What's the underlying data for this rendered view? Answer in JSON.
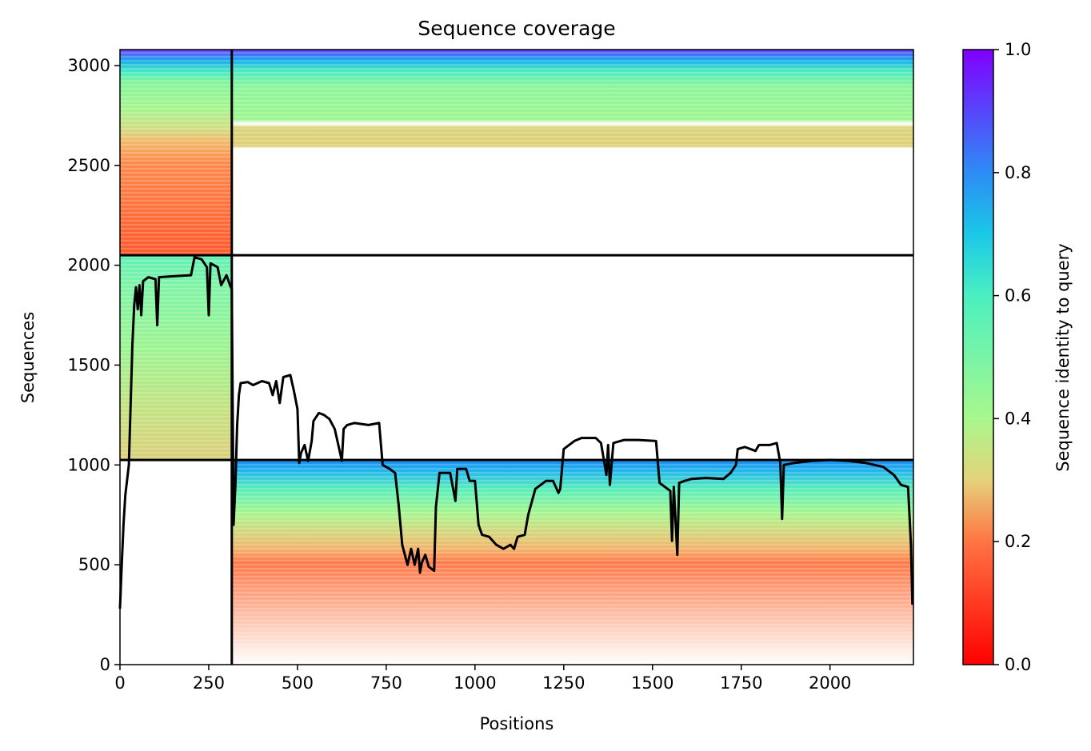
{
  "chart_data": {
    "type": "heatmap",
    "title": "Sequence coverage",
    "xlabel": "Positions",
    "ylabel": "Sequences",
    "xlim": [
      0,
      2235
    ],
    "ylim": [
      0,
      3080
    ],
    "xticks": [
      0,
      250,
      500,
      750,
      1000,
      1250,
      1500,
      1750,
      2000
    ],
    "yticks": [
      0,
      500,
      1000,
      1500,
      2000,
      2500,
      3000
    ],
    "colormap": "rainbow (red 0.0 to violet 1.0)",
    "colorbar": {
      "label": "Sequence identity to query",
      "range": [
        0.0,
        1.0
      ],
      "ticks": [
        0.0,
        0.2,
        0.4,
        0.6,
        0.8,
        1.0
      ],
      "tick_labels": [
        "0.0",
        "0.2",
        "0.4",
        "0.6",
        "0.8",
        "1.0"
      ]
    },
    "chain_boundaries": {
      "x": 315,
      "y": [
        1025,
        2050
      ]
    },
    "blocks": [
      {
        "name": "chain1-top",
        "x": [
          0,
          315
        ],
        "y": [
          2050,
          3080
        ]
      },
      {
        "name": "chain1-mid",
        "x": [
          0,
          315
        ],
        "y": [
          1025,
          2050
        ]
      },
      {
        "name": "chain2-top",
        "x": [
          315,
          2235
        ],
        "y": [
          2050,
          3080
        ]
      },
      {
        "name": "chain2-bottom",
        "x": [
          315,
          2235
        ],
        "y": [
          0,
          1025
        ]
      }
    ],
    "coverage_line": [
      [
        0,
        280
      ],
      [
        5,
        500
      ],
      [
        10,
        700
      ],
      [
        15,
        850
      ],
      [
        25,
        1000
      ],
      [
        30,
        1300
      ],
      [
        35,
        1600
      ],
      [
        40,
        1800
      ],
      [
        45,
        1890
      ],
      [
        50,
        1780
      ],
      [
        55,
        1900
      ],
      [
        60,
        1750
      ],
      [
        65,
        1920
      ],
      [
        80,
        1940
      ],
      [
        100,
        1930
      ],
      [
        105,
        1700
      ],
      [
        110,
        1940
      ],
      [
        150,
        1945
      ],
      [
        200,
        1950
      ],
      [
        210,
        2040
      ],
      [
        230,
        2030
      ],
      [
        245,
        1990
      ],
      [
        250,
        1750
      ],
      [
        255,
        2010
      ],
      [
        275,
        1990
      ],
      [
        285,
        1900
      ],
      [
        300,
        1950
      ],
      [
        310,
        1900
      ],
      [
        315,
        1880
      ],
      [
        320,
        700
      ],
      [
        325,
        900
      ],
      [
        330,
        1200
      ],
      [
        335,
        1350
      ],
      [
        340,
        1410
      ],
      [
        360,
        1415
      ],
      [
        375,
        1400
      ],
      [
        400,
        1420
      ],
      [
        420,
        1410
      ],
      [
        430,
        1350
      ],
      [
        440,
        1420
      ],
      [
        450,
        1310
      ],
      [
        460,
        1440
      ],
      [
        480,
        1450
      ],
      [
        490,
        1370
      ],
      [
        500,
        1280
      ],
      [
        505,
        1010
      ],
      [
        510,
        1060
      ],
      [
        520,
        1100
      ],
      [
        530,
        1020
      ],
      [
        540,
        1120
      ],
      [
        545,
        1220
      ],
      [
        560,
        1260
      ],
      [
        575,
        1250
      ],
      [
        590,
        1230
      ],
      [
        605,
        1180
      ],
      [
        615,
        1100
      ],
      [
        625,
        1020
      ],
      [
        630,
        1180
      ],
      [
        640,
        1200
      ],
      [
        660,
        1210
      ],
      [
        700,
        1200
      ],
      [
        730,
        1210
      ],
      [
        740,
        1000
      ],
      [
        760,
        980
      ],
      [
        775,
        960
      ],
      [
        785,
        800
      ],
      [
        795,
        600
      ],
      [
        810,
        500
      ],
      [
        820,
        580
      ],
      [
        830,
        500
      ],
      [
        840,
        580
      ],
      [
        845,
        460
      ],
      [
        850,
        510
      ],
      [
        860,
        550
      ],
      [
        870,
        490
      ],
      [
        885,
        470
      ],
      [
        890,
        790
      ],
      [
        900,
        960
      ],
      [
        930,
        960
      ],
      [
        945,
        820
      ],
      [
        950,
        980
      ],
      [
        975,
        980
      ],
      [
        985,
        920
      ],
      [
        1000,
        920
      ],
      [
        1005,
        810
      ],
      [
        1010,
        700
      ],
      [
        1020,
        650
      ],
      [
        1040,
        640
      ],
      [
        1060,
        600
      ],
      [
        1080,
        580
      ],
      [
        1100,
        600
      ],
      [
        1110,
        580
      ],
      [
        1120,
        640
      ],
      [
        1140,
        650
      ],
      [
        1150,
        750
      ],
      [
        1170,
        880
      ],
      [
        1200,
        920
      ],
      [
        1220,
        920
      ],
      [
        1235,
        860
      ],
      [
        1240,
        880
      ],
      [
        1250,
        1080
      ],
      [
        1280,
        1120
      ],
      [
        1300,
        1135
      ],
      [
        1340,
        1135
      ],
      [
        1355,
        1110
      ],
      [
        1370,
        950
      ],
      [
        1375,
        1100
      ],
      [
        1380,
        900
      ],
      [
        1390,
        1110
      ],
      [
        1420,
        1125
      ],
      [
        1460,
        1125
      ],
      [
        1510,
        1120
      ],
      [
        1520,
        910
      ],
      [
        1550,
        870
      ],
      [
        1555,
        620
      ],
      [
        1560,
        890
      ],
      [
        1570,
        550
      ],
      [
        1575,
        910
      ],
      [
        1590,
        920
      ],
      [
        1610,
        930
      ],
      [
        1650,
        935
      ],
      [
        1700,
        930
      ],
      [
        1720,
        960
      ],
      [
        1735,
        1000
      ],
      [
        1740,
        1080
      ],
      [
        1760,
        1090
      ],
      [
        1790,
        1070
      ],
      [
        1800,
        1100
      ],
      [
        1830,
        1100
      ],
      [
        1850,
        1110
      ],
      [
        1860,
        1010
      ],
      [
        1865,
        730
      ],
      [
        1870,
        1000
      ],
      [
        1900,
        1010
      ],
      [
        1950,
        1020
      ],
      [
        2000,
        1025
      ],
      [
        2050,
        1020
      ],
      [
        2100,
        1010
      ],
      [
        2150,
        990
      ],
      [
        2180,
        950
      ],
      [
        2200,
        900
      ],
      [
        2220,
        890
      ],
      [
        2228,
        600
      ],
      [
        2232,
        300
      ]
    ]
  }
}
